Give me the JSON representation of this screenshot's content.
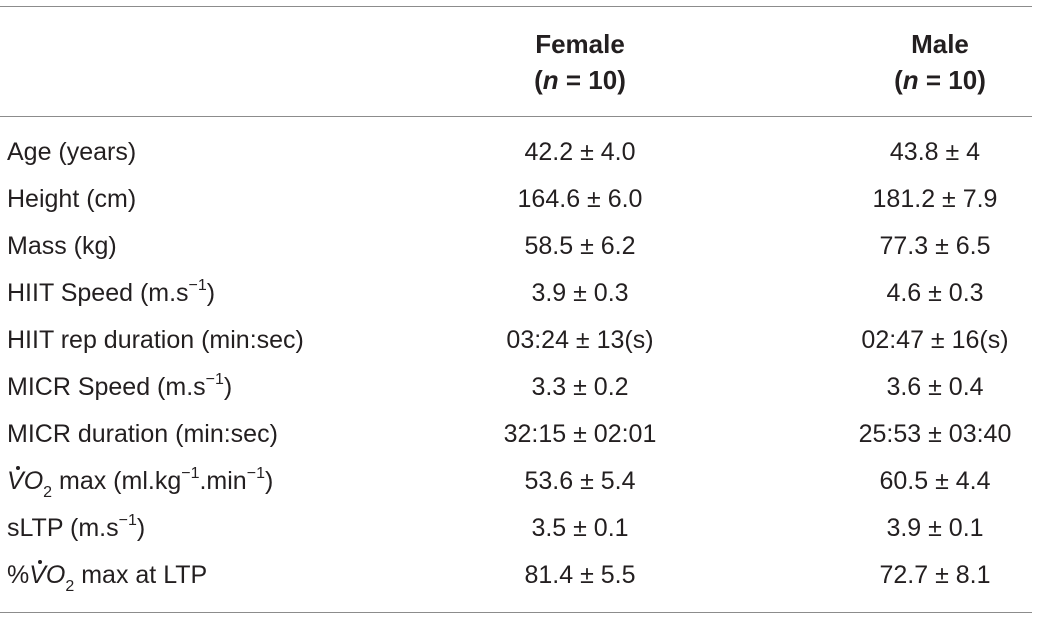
{
  "table": {
    "headers": {
      "female": {
        "title": "Female",
        "n_prefix": "(",
        "n_var": "n",
        "n_suffix": " = 10)"
      },
      "male": {
        "title": "Male",
        "n_prefix": "(",
        "n_var": "n",
        "n_suffix": " = 10)"
      }
    },
    "rows": [
      {
        "label": "Age (years)",
        "female": "42.2 ± 4.0",
        "male": "43.8 ± 4"
      },
      {
        "label": "Height (cm)",
        "female": "164.6 ± 6.0",
        "male": "181.2 ± 7.9"
      },
      {
        "label": "Mass (kg)",
        "female": "58.5 ± 6.2",
        "male": "77.3 ± 6.5"
      },
      {
        "label_main": "HIIT Speed (m.s",
        "label_sup": "−1",
        "label_end": ")",
        "female": "3.9 ± 0.3",
        "male": "4.6 ± 0.3"
      },
      {
        "label": "HIIT rep duration (min:sec)",
        "female": "03:24 ± 13(s)",
        "male": "02:47 ± 16(s)"
      },
      {
        "label_main": "MICR Speed (m.s",
        "label_sup": "−1",
        "label_end": ")",
        "female": "3.3 ± 0.2",
        "male": "3.6 ± 0.4"
      },
      {
        "label": "MICR duration (min:sec)",
        "female": "32:15 ± 02:01",
        "male": "25:53 ± 03:40"
      },
      {
        "label_v": "V",
        "label_o": "O",
        "label_sub": "2",
        "label_mid": " max (ml.kg",
        "label_sup1": "−1",
        "label_mid2": ".min",
        "label_sup2": "−1",
        "label_end": ")",
        "female": "53.6 ± 5.4",
        "male": "60.5 ± 4.4"
      },
      {
        "label_main": "sLTP (m.s",
        "label_sup": "−1",
        "label_end": ")",
        "female": "3.5 ± 0.1",
        "male": "3.9 ± 0.1"
      },
      {
        "label_pct": "%",
        "label_v": "V",
        "label_o": "O",
        "label_sub": "2",
        "label_end": " max at LTP",
        "female": "81.4 ± 5.5",
        "male": "72.7 ± 8.1"
      }
    ]
  }
}
